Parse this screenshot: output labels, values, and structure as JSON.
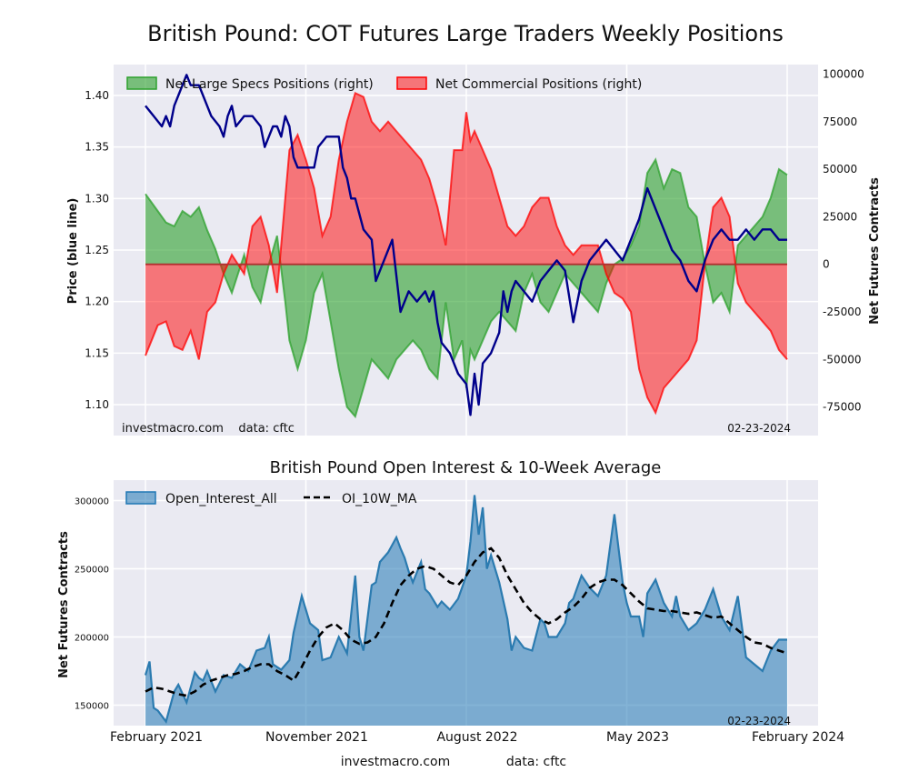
{
  "title": "British Pound: COT Futures Large Traders Weekly Positions",
  "footer": {
    "source": "investmacro.com",
    "data": "data: cftc"
  },
  "x_axis": {
    "ticks": [
      {
        "label": "February 2021",
        "week": 0
      },
      {
        "label": "November 2021",
        "week": 39
      },
      {
        "label": "August 2022",
        "week": 78
      },
      {
        "label": "May 2023",
        "week": 117
      },
      {
        "label": "February 2024",
        "week": 156
      }
    ]
  },
  "chart_data": [
    {
      "type": "area",
      "title": "British Pound: COT Futures Large Traders Weekly Positions",
      "watermark": "investmacro.com    data: cftc",
      "date_label": "02-23-2024",
      "left_axis": {
        "label": "Price (blue line)",
        "ylim": [
          1.07,
          1.43
        ],
        "ticks": [
          1.1,
          1.15,
          1.2,
          1.25,
          1.3,
          1.35,
          1.4
        ]
      },
      "right_axis": {
        "label": "Net Futures Contracts",
        "ylim": [
          -90000,
          105000
        ],
        "ticks": [
          100000,
          75000,
          50000,
          25000,
          0,
          -25000,
          -50000,
          -75000
        ]
      },
      "legend_position": "top",
      "grid": true,
      "series": [
        {
          "name": "Net Large Specs Positions (right)",
          "kind": "area-right",
          "color": "#2ca02c",
          "weeks": [
            0,
            3,
            5,
            7,
            9,
            11,
            13,
            15,
            17,
            19,
            21,
            24,
            26,
            28,
            30,
            32,
            34,
            35,
            37,
            39,
            41,
            43,
            45,
            47,
            49,
            51,
            53,
            55,
            57,
            59,
            61,
            63,
            65,
            67,
            69,
            71,
            73,
            75,
            77,
            78,
            79,
            80,
            82,
            84,
            86,
            88,
            90,
            92,
            94,
            96,
            98,
            100,
            102,
            104,
            106,
            108,
            110,
            112,
            114,
            116,
            118,
            120,
            122,
            124,
            126,
            128,
            130,
            132,
            134,
            136,
            138,
            140,
            142,
            144,
            146,
            148,
            150,
            152,
            154,
            156
          ],
          "values": [
            37000,
            28000,
            22000,
            20000,
            28000,
            25000,
            30000,
            18000,
            8000,
            -5000,
            -15000,
            5000,
            -12000,
            -20000,
            0,
            15000,
            -20000,
            -40000,
            -55000,
            -40000,
            -15000,
            -5000,
            -30000,
            -55000,
            -75000,
            -80000,
            -65000,
            -50000,
            -55000,
            -60000,
            -50000,
            -45000,
            -40000,
            -45000,
            -55000,
            -60000,
            -20000,
            -50000,
            -40000,
            -65000,
            -45000,
            -50000,
            -40000,
            -30000,
            -25000,
            -30000,
            -35000,
            -15000,
            -5000,
            -20000,
            -25000,
            -15000,
            -5000,
            -10000,
            -15000,
            -20000,
            -25000,
            -10000,
            0,
            3000,
            10000,
            20000,
            48000,
            55000,
            40000,
            50000,
            48000,
            30000,
            25000,
            0,
            -20000,
            -15000,
            -25000,
            10000,
            15000,
            20000,
            25000,
            35000,
            50000,
            47000
          ]
        },
        {
          "name": "Net Commercial Positions (right)",
          "kind": "area-right",
          "color": "#ff0000",
          "weeks": [
            0,
            3,
            5,
            7,
            9,
            11,
            13,
            15,
            17,
            19,
            21,
            24,
            26,
            28,
            30,
            32,
            34,
            35,
            37,
            39,
            41,
            43,
            45,
            47,
            49,
            51,
            53,
            55,
            57,
            59,
            61,
            63,
            65,
            67,
            69,
            71,
            73,
            75,
            77,
            78,
            79,
            80,
            82,
            84,
            86,
            88,
            90,
            92,
            94,
            96,
            98,
            100,
            102,
            104,
            106,
            108,
            110,
            112,
            114,
            116,
            118,
            120,
            122,
            124,
            126,
            128,
            130,
            132,
            134,
            136,
            138,
            140,
            142,
            144,
            146,
            148,
            150,
            152,
            154,
            156
          ],
          "values": [
            -48000,
            -32000,
            -30000,
            -43000,
            -45000,
            -35000,
            -50000,
            -25000,
            -20000,
            -5000,
            5000,
            -5000,
            20000,
            25000,
            10000,
            -15000,
            35000,
            60000,
            68000,
            55000,
            40000,
            15000,
            25000,
            55000,
            75000,
            90000,
            88000,
            75000,
            70000,
            75000,
            70000,
            65000,
            60000,
            55000,
            45000,
            30000,
            10000,
            60000,
            60000,
            80000,
            65000,
            70000,
            60000,
            50000,
            35000,
            20000,
            15000,
            20000,
            30000,
            35000,
            35000,
            20000,
            10000,
            5000,
            10000,
            10000,
            10000,
            -5000,
            -15000,
            -18000,
            -25000,
            -55000,
            -70000,
            -78000,
            -65000,
            -60000,
            -55000,
            -50000,
            -40000,
            0,
            30000,
            35000,
            25000,
            -10000,
            -20000,
            -25000,
            -30000,
            -35000,
            -45000,
            -50000
          ]
        },
        {
          "name": "Price",
          "kind": "line-left",
          "color": "#00008b",
          "weeks": [
            0,
            2,
            4,
            5,
            6,
            7,
            8,
            9,
            10,
            11,
            13,
            14,
            16,
            18,
            19,
            20,
            21,
            22,
            24,
            26,
            28,
            29,
            30,
            31,
            32,
            33,
            34,
            35,
            36,
            37,
            38,
            39,
            41,
            42,
            44,
            46,
            47,
            48,
            49,
            50,
            51,
            53,
            55,
            56,
            58,
            60,
            62,
            64,
            66,
            68,
            69,
            70,
            71,
            72,
            74,
            76,
            78,
            79,
            80,
            81,
            82,
            84,
            86,
            87,
            88,
            89,
            90,
            92,
            94,
            96,
            98,
            100,
            102,
            104,
            106,
            108,
            110,
            112,
            114,
            116,
            117,
            118,
            120,
            122,
            124,
            126,
            128,
            130,
            132,
            134,
            136,
            138,
            140,
            142,
            144,
            146,
            148,
            150,
            152,
            154,
            156
          ],
          "values": [
            1.39,
            1.38,
            1.37,
            1.38,
            1.37,
            1.39,
            1.4,
            1.41,
            1.42,
            1.41,
            1.41,
            1.4,
            1.38,
            1.37,
            1.36,
            1.38,
            1.39,
            1.37,
            1.38,
            1.38,
            1.37,
            1.35,
            1.36,
            1.37,
            1.37,
            1.36,
            1.38,
            1.37,
            1.34,
            1.33,
            1.33,
            1.33,
            1.33,
            1.35,
            1.36,
            1.36,
            1.36,
            1.33,
            1.32,
            1.3,
            1.3,
            1.27,
            1.26,
            1.22,
            1.24,
            1.26,
            1.19,
            1.21,
            1.2,
            1.21,
            1.2,
            1.21,
            1.18,
            1.16,
            1.15,
            1.13,
            1.12,
            1.09,
            1.13,
            1.1,
            1.14,
            1.15,
            1.17,
            1.21,
            1.19,
            1.21,
            1.22,
            1.21,
            1.2,
            1.22,
            1.23,
            1.24,
            1.23,
            1.18,
            1.22,
            1.24,
            1.25,
            1.26,
            1.25,
            1.24,
            1.25,
            1.26,
            1.28,
            1.31,
            1.29,
            1.27,
            1.25,
            1.24,
            1.22,
            1.21,
            1.24,
            1.26,
            1.27,
            1.26,
            1.26,
            1.27,
            1.26,
            1.27,
            1.27,
            1.26,
            1.26
          ]
        }
      ]
    },
    {
      "type": "area",
      "title": "British Pound Open Interest & 10-Week Average",
      "date_label": "02-23-2024",
      "ylabel": "Net Futures Contracts",
      "ylim": [
        135000,
        315000
      ],
      "yticks": [
        150000,
        200000,
        250000,
        300000
      ],
      "legend_position": "top-left",
      "grid": true,
      "series": [
        {
          "name": "Open_Interest_All",
          "kind": "area",
          "color": "#1f77b4",
          "weeks": [
            0,
            1,
            2,
            3,
            5,
            7,
            8,
            10,
            12,
            13,
            14,
            15,
            17,
            19,
            21,
            23,
            25,
            27,
            29,
            30,
            31,
            33,
            35,
            36,
            38,
            40,
            42,
            43,
            45,
            47,
            49,
            51,
            52,
            53,
            55,
            56,
            57,
            59,
            61,
            62,
            63,
            64,
            65,
            67,
            68,
            69,
            71,
            72,
            74,
            76,
            78,
            79,
            80,
            81,
            82,
            83,
            84,
            86,
            88,
            89,
            90,
            92,
            94,
            96,
            97,
            98,
            100,
            102,
            103,
            104,
            106,
            108,
            110,
            112,
            114,
            116,
            117,
            118,
            120,
            121,
            122,
            124,
            126,
            128,
            129,
            130,
            132,
            134,
            136,
            138,
            140,
            142,
            144,
            146,
            148,
            150,
            152,
            154,
            156
          ],
          "values": [
            172000,
            182000,
            148000,
            146000,
            138000,
            160000,
            165000,
            152000,
            174000,
            170000,
            168000,
            175000,
            160000,
            172000,
            170000,
            180000,
            175000,
            190000,
            192000,
            200000,
            180000,
            176000,
            183000,
            203000,
            230000,
            210000,
            205000,
            183000,
            185000,
            200000,
            188000,
            245000,
            200000,
            190000,
            238000,
            240000,
            255000,
            262000,
            273000,
            265000,
            258000,
            248000,
            240000,
            255000,
            235000,
            232000,
            222000,
            226000,
            220000,
            228000,
            245000,
            270000,
            304000,
            275000,
            295000,
            250000,
            260000,
            240000,
            213000,
            190000,
            200000,
            192000,
            190000,
            213000,
            210000,
            200000,
            200000,
            210000,
            225000,
            228000,
            245000,
            236000,
            230000,
            245000,
            290000,
            240000,
            225000,
            215000,
            215000,
            200000,
            232000,
            242000,
            225000,
            215000,
            230000,
            215000,
            205000,
            210000,
            220000,
            235000,
            215000,
            205000,
            230000,
            185000,
            180000,
            175000,
            190000,
            198000,
            198000
          ]
        },
        {
          "name": "OI_10W_MA",
          "kind": "line-dashed",
          "color": "#000000",
          "weeks": [
            0,
            2,
            4,
            6,
            8,
            10,
            12,
            14,
            16,
            18,
            20,
            22,
            24,
            26,
            28,
            30,
            32,
            34,
            36,
            38,
            40,
            42,
            44,
            46,
            48,
            50,
            52,
            54,
            56,
            58,
            60,
            62,
            64,
            66,
            68,
            70,
            72,
            74,
            76,
            78,
            80,
            82,
            84,
            86,
            88,
            90,
            92,
            94,
            96,
            98,
            100,
            102,
            104,
            106,
            108,
            110,
            112,
            114,
            116,
            118,
            120,
            122,
            124,
            126,
            128,
            130,
            132,
            134,
            136,
            138,
            140,
            142,
            144,
            146,
            148,
            150,
            152,
            154,
            156
          ],
          "values": [
            160000,
            163000,
            162000,
            160000,
            158000,
            157000,
            160000,
            165000,
            168000,
            170000,
            172000,
            173000,
            175000,
            178000,
            180000,
            180000,
            175000,
            172000,
            168000,
            178000,
            190000,
            200000,
            207000,
            210000,
            205000,
            198000,
            195000,
            196000,
            200000,
            210000,
            225000,
            238000,
            245000,
            250000,
            252000,
            250000,
            245000,
            240000,
            238000,
            245000,
            255000,
            262000,
            265000,
            258000,
            245000,
            235000,
            225000,
            218000,
            213000,
            210000,
            213000,
            218000,
            222000,
            228000,
            236000,
            240000,
            242000,
            242000,
            238000,
            232000,
            226000,
            221000,
            220000,
            219000,
            219000,
            218000,
            217000,
            218000,
            216000,
            214000,
            215000,
            210000,
            205000,
            200000,
            196000,
            195000,
            192000,
            190000,
            188000
          ]
        }
      ]
    }
  ]
}
